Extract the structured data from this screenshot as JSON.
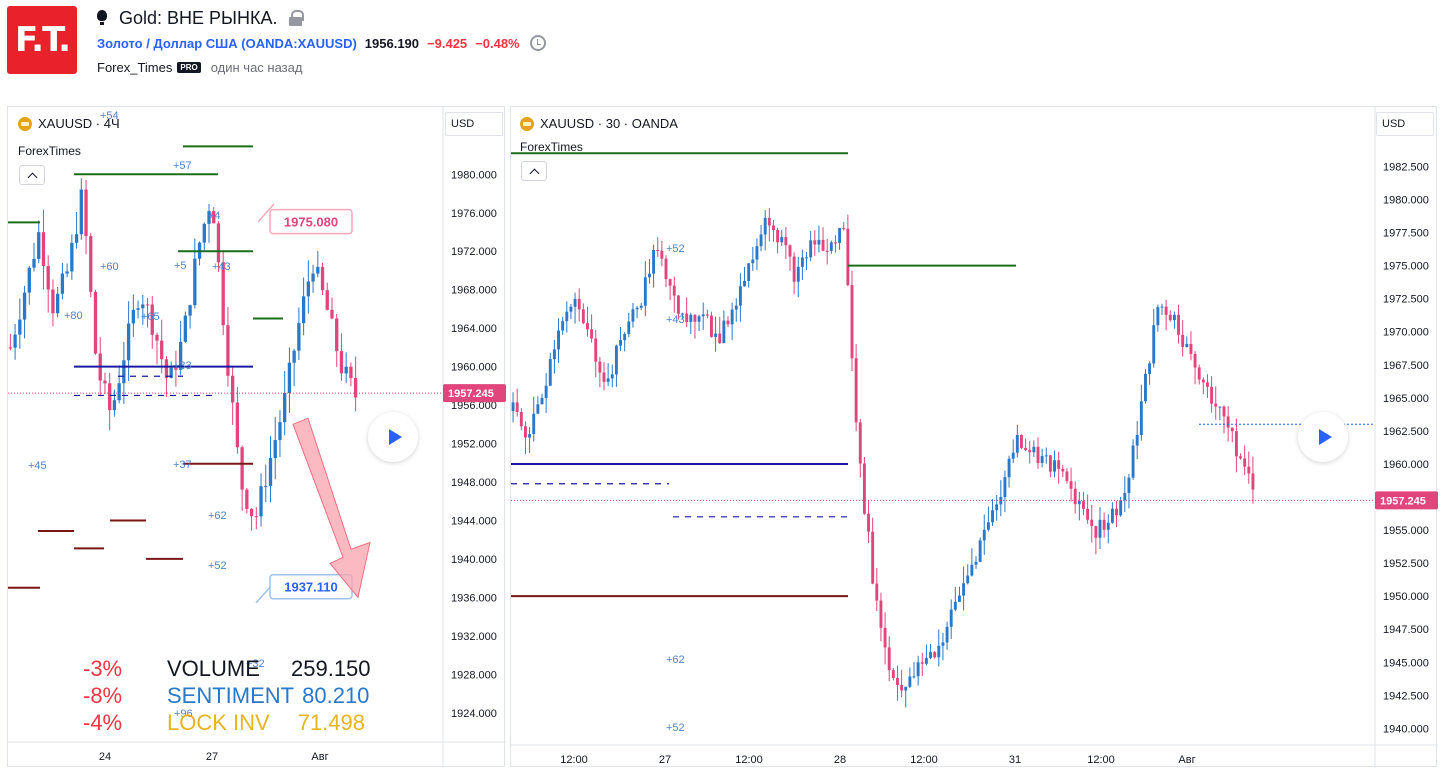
{
  "header": {
    "logo_text": "F.T.",
    "title": "Gold: ВНЕ РЫНКА.",
    "symbol_name": "Золото / Доллар США",
    "symbol_code": "(OANDA:XAUUSD)",
    "price": "1956.190",
    "change": "−9.425",
    "change_pct": "−0.48%",
    "author": "Forex_Times",
    "pro_badge": "PRO",
    "published": "один час назад",
    "icons": [
      "bulb-icon",
      "lock-icon",
      "alarm-clock-icon"
    ]
  },
  "left_chart": {
    "legend": "XAUUSD · 4Ч",
    "indicator": "ForexTimes",
    "currency": "USD",
    "price_scale": [
      "1980.000",
      "1976.000",
      "1972.000",
      "1968.000",
      "1964.000",
      "1960.000",
      "1956.000",
      "1952.000",
      "1948.000",
      "1944.000",
      "1940.000",
      "1936.000",
      "1932.000",
      "1928.000",
      "1924.000"
    ],
    "current_price_label": "1957.245",
    "time_labels": [
      "24",
      "27",
      "Авг"
    ],
    "callout_high": "1975.080",
    "callout_low": "1937.110",
    "level_labels": [
      "+54",
      "+57",
      "+60",
      "+80",
      "+65",
      "+5",
      "+43",
      "+33",
      "+37",
      "+45",
      "+62",
      "+52",
      "+96",
      "+32",
      "+4"
    ],
    "stats": [
      {
        "pct": "-3%",
        "key": "VOLUME",
        "value": "259.150"
      },
      {
        "pct": "-8%",
        "key": "SENTIMENT",
        "value": "80.210"
      },
      {
        "pct": "-4%",
        "key": "LOCK INV",
        "value": "71.498"
      }
    ]
  },
  "right_chart": {
    "legend": "XAUUSD · 30 · OANDA",
    "indicator": "ForexTimes",
    "currency": "USD",
    "price_scale": [
      "1982.500",
      "1980.000",
      "1977.500",
      "1975.000",
      "1972.500",
      "1970.000",
      "1967.500",
      "1965.000",
      "1962.500",
      "1960.000",
      "1957.500",
      "1955.000",
      "1952.500",
      "1950.000",
      "1947.500",
      "1945.000",
      "1942.500",
      "1940.000"
    ],
    "current_price_label": "1957.245",
    "time_labels": [
      "12:00",
      "27",
      "12:00",
      "28",
      "12:00",
      "31",
      "12:00",
      "Авг"
    ],
    "level_labels": [
      "+52",
      "+43",
      "+62",
      "+52"
    ]
  },
  "chart_data": [
    {
      "type": "candlestick",
      "symbol": "XAUUSD",
      "timeframe": "4Ч",
      "ylim": [
        1922,
        1987
      ],
      "current_price": 1957.245,
      "x_ticks": [
        "24",
        "27",
        "Авг"
      ],
      "close_path": [
        1962,
        1968,
        1974,
        1966,
        1970,
        1978,
        1960,
        1955,
        1962,
        1968,
        1964,
        1958,
        1963,
        1972,
        1978,
        1962,
        1948,
        1944,
        1950,
        1956,
        1964,
        1971,
        1966,
        1960,
        1957
      ],
      "annotations": [
        {
          "type": "callout",
          "text": "1975.080",
          "value": 1975.08
        },
        {
          "type": "callout",
          "text": "1937.110",
          "value": 1937.11
        },
        {
          "type": "arrow",
          "direction": "down",
          "from": 1954,
          "to": 1936
        }
      ],
      "levels": [
        {
          "value": 1960.0,
          "color": "#1a1aa6",
          "style": "solid"
        },
        {
          "value": 1957.0,
          "color": "#1a1aa6",
          "style": "dashed"
        },
        {
          "value": 1959.0,
          "color": "#1a1aa6",
          "style": "dashed"
        },
        {
          "value": 1949.9,
          "color": "#7b1616",
          "style": "solid"
        },
        {
          "value": 1982.9,
          "color": "#1b6e1b",
          "style": "solid"
        },
        {
          "value": 1980.0,
          "color": "#1b6e1b",
          "style": "solid"
        },
        {
          "value": 1975.0,
          "color": "#1b6e1b",
          "style": "solid"
        },
        {
          "value": 1972.0,
          "color": "#1b6e1b",
          "style": "solid"
        },
        {
          "value": 1965.0,
          "color": "#1b6e1b",
          "style": "solid"
        },
        {
          "value": 1942.9,
          "color": "#7b1616",
          "style": "solid"
        },
        {
          "value": 1941.1,
          "color": "#7b1616",
          "style": "solid"
        },
        {
          "value": 1944.0,
          "color": "#7b1616",
          "style": "solid"
        },
        {
          "value": 1940.0,
          "color": "#7b1616",
          "style": "solid"
        },
        {
          "value": 1937.0,
          "color": "#7b1616",
          "style": "solid"
        }
      ]
    },
    {
      "type": "candlestick",
      "symbol": "XAUUSD",
      "timeframe": "30",
      "ylim": [
        1939.5,
        1984.5
      ],
      "current_price": 1957.245,
      "x_ticks": [
        "12:00",
        "27",
        "12:00",
        "28",
        "12:00",
        "31",
        "12:00",
        "Авг"
      ],
      "close_path": [
        1964,
        1962,
        1966,
        1971,
        1972,
        1969,
        1966,
        1970,
        1972,
        1976,
        1974,
        1970,
        1972,
        1969,
        1972,
        1975,
        1979,
        1977,
        1974,
        1977,
        1976,
        1978,
        1960,
        1950,
        1944,
        1943,
        1945,
        1946,
        1949,
        1952,
        1955,
        1958,
        1962,
        1961,
        1960,
        1959,
        1957,
        1955,
        1956,
        1958,
        1965,
        1972,
        1971,
        1968,
        1966,
        1964,
        1961,
        1958
      ],
      "levels": [
        {
          "value": 1983.5,
          "color": "#1b6e1b",
          "style": "solid"
        },
        {
          "value": 1975.0,
          "color": "#1b6e1b",
          "style": "solid"
        },
        {
          "value": 1960.0,
          "color": "#1a1aa6",
          "style": "solid"
        },
        {
          "value": 1958.5,
          "color": "#1a1aa6",
          "style": "dashed"
        },
        {
          "value": 1956.0,
          "color": "#1a1aa6",
          "style": "dashed"
        },
        {
          "value": 1950.0,
          "color": "#7b1616",
          "style": "solid"
        },
        {
          "value": 1963.0,
          "color": "#2962ff",
          "style": "dotted"
        }
      ]
    }
  ]
}
